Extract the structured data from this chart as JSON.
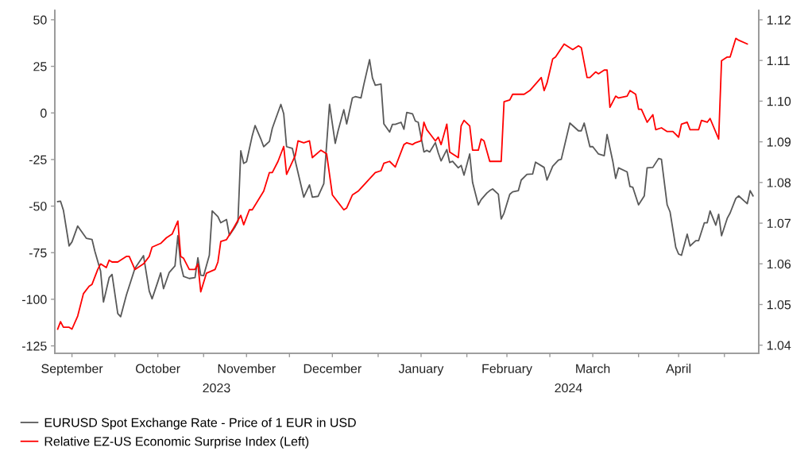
{
  "chart_data": {
    "type": "line",
    "xlim": [
      "2023-09-10",
      "2024-05-13"
    ],
    "xticks": [
      {
        "value": "2023-09-16",
        "label": "September"
      },
      {
        "value": "2023-10-01",
        "label": null
      },
      {
        "value": "2023-10-16",
        "label": "October"
      },
      {
        "value": "2023-11-01",
        "label": null
      },
      {
        "value": "2023-11-16",
        "label": "November"
      },
      {
        "value": "2023-12-01",
        "label": null
      },
      {
        "value": "2023-12-16",
        "label": "December"
      },
      {
        "value": "2024-01-01",
        "label": null
      },
      {
        "value": "2024-01-16",
        "label": "January"
      },
      {
        "value": "2024-02-01",
        "label": null
      },
      {
        "value": "2024-02-15",
        "label": "February"
      },
      {
        "value": "2024-03-01",
        "label": null
      },
      {
        "value": "2024-03-16",
        "label": "March"
      },
      {
        "value": "2024-04-01",
        "label": null
      },
      {
        "value": "2024-04-15",
        "label": "April"
      },
      {
        "value": "2024-05-01",
        "label": null
      }
    ],
    "ylim": [
      -129,
      55
    ],
    "yticks": [
      -125,
      -100,
      -75,
      -50,
      -25,
      0,
      25,
      50
    ],
    "y2lim": [
      1.038,
      1.1223
    ],
    "y2ticks": [
      1.04,
      1.05,
      1.06,
      1.07,
      1.08,
      1.09,
      {
        "value": 1.1,
        "label": "1.10"
      },
      1.11,
      1.12
    ],
    "grid": false,
    "legend": "bottom left",
    "line_style": "solid",
    "marker": "none",
    "annotations": [
      "2023",
      "2024"
    ],
    "series": [
      {
        "name": "EURUSD Spot Exchange Rate - Price of 1 EUR in USD",
        "color": "#595959",
        "axis": "y2",
        "x": [
          "2023-09-11",
          "2023-09-12",
          "2023-09-13",
          "2023-09-15",
          "2023-09-16",
          "2023-09-18",
          "2023-09-21",
          "2023-09-23",
          "2023-09-24",
          "2023-09-26",
          "2023-09-27",
          "2023-09-29",
          "2023-09-30",
          "2023-10-02",
          "2023-10-03",
          "2023-10-05",
          "2023-10-08",
          "2023-10-11",
          "2023-10-13",
          "2023-10-14",
          "2023-10-16",
          "2023-10-17",
          "2023-10-18",
          "2023-10-20",
          "2023-10-22",
          "2023-10-23",
          "2023-10-24",
          "2023-10-25",
          "2023-10-27",
          "2023-10-29",
          "2023-10-30",
          "2023-10-31",
          "2023-11-01",
          "2023-11-03",
          "2023-11-04",
          "2023-11-06",
          "2023-11-07",
          "2023-11-09",
          "2023-11-10",
          "2023-11-12",
          "2023-11-13",
          "2023-11-14",
          "2023-11-15",
          "2023-11-16",
          "2023-11-18",
          "2023-11-19",
          "2023-11-21",
          "2023-11-22",
          "2023-11-24",
          "2023-11-25",
          "2023-11-26",
          "2023-11-28",
          "2023-11-29",
          "2023-11-30",
          "2023-12-02",
          "2023-12-06",
          "2023-12-08",
          "2023-12-09",
          "2023-12-11",
          "2023-12-13",
          "2023-12-15",
          "2023-12-17",
          "2023-12-18",
          "2023-12-20",
          "2023-12-21",
          "2023-12-23",
          "2023-12-24",
          "2023-12-26",
          "2023-12-27",
          "2023-12-29",
          "2023-12-30",
          "2023-12-31",
          "2024-01-02",
          "2024-01-03",
          "2024-01-05",
          "2024-01-06",
          "2024-01-07",
          "2024-01-09",
          "2024-01-10",
          "2024-01-11",
          "2024-01-13",
          "2024-01-14",
          "2024-01-15",
          "2024-01-17",
          "2024-01-18",
          "2024-01-19",
          "2024-01-21",
          "2024-01-22",
          "2024-01-23",
          "2024-01-25",
          "2024-01-26",
          "2024-01-27",
          "2024-01-29",
          "2024-01-30",
          "2024-01-31",
          "2024-02-02",
          "2024-02-03",
          "2024-02-05",
          "2024-02-06",
          "2024-02-08",
          "2024-02-09",
          "2024-02-10",
          "2024-02-12",
          "2024-02-13",
          "2024-02-14",
          "2024-02-16",
          "2024-02-17",
          "2024-02-19",
          "2024-02-20",
          "2024-02-22",
          "2024-02-24",
          "2024-02-25",
          "2024-02-28",
          "2024-02-29",
          "2024-03-02",
          "2024-03-04",
          "2024-03-05",
          "2024-03-08",
          "2024-03-11",
          "2024-03-12",
          "2024-03-13",
          "2024-03-15",
          "2024-03-16",
          "2024-03-18",
          "2024-03-20",
          "2024-03-21",
          "2024-03-23",
          "2024-03-24",
          "2024-03-25",
          "2024-03-28",
          "2024-03-29",
          "2024-03-30",
          "2024-04-01",
          "2024-04-03",
          "2024-04-04",
          "2024-04-06",
          "2024-04-08",
          "2024-04-09",
          "2024-04-11",
          "2024-04-12",
          "2024-04-14",
          "2024-04-15",
          "2024-04-16",
          "2024-04-18",
          "2024-04-19",
          "2024-04-21",
          "2024-04-22",
          "2024-04-24",
          "2024-04-25",
          "2024-04-26",
          "2024-04-28",
          "2024-04-29",
          "2024-04-30",
          "2024-05-02",
          "2024-05-03",
          "2024-05-05",
          "2024-05-06",
          "2024-05-08",
          "2024-05-09",
          "2024-05-10",
          "2024-05-11"
        ],
        "values": [
          1.0753,
          1.0754,
          1.0732,
          1.0644,
          1.0654,
          1.0693,
          1.0663,
          1.066,
          1.0631,
          1.0582,
          1.0506,
          1.0566,
          1.0574,
          1.0478,
          1.047,
          1.0523,
          1.0589,
          1.062,
          1.0533,
          1.0514,
          1.0556,
          1.0578,
          1.0539,
          1.0579,
          1.0595,
          1.0669,
          1.0598,
          1.0569,
          1.0564,
          1.0566,
          1.0615,
          1.0572,
          1.0571,
          1.0621,
          1.073,
          1.0716,
          1.0701,
          1.0709,
          1.067,
          1.0691,
          1.0704,
          1.0878,
          1.0847,
          1.0851,
          1.0915,
          1.094,
          1.0907,
          1.0888,
          1.0901,
          1.0933,
          1.0953,
          1.0992,
          1.0969,
          1.0888,
          1.0884,
          1.0764,
          1.0794,
          1.0764,
          1.0766,
          1.0797,
          1.0992,
          1.0896,
          1.0927,
          1.0979,
          1.0944,
          1.1008,
          1.1011,
          1.1008,
          1.1041,
          1.1102,
          1.1057,
          1.1039,
          1.1042,
          1.0944,
          1.0924,
          1.0943,
          1.0943,
          1.0948,
          1.0931,
          1.0972,
          1.0969,
          1.0951,
          1.0948,
          1.0875,
          1.0879,
          1.0875,
          1.0898,
          1.0873,
          1.0853,
          1.0881,
          1.0849,
          1.0852,
          1.0836,
          1.0842,
          1.0818,
          1.087,
          1.08,
          1.0745,
          1.0758,
          1.0774,
          1.078,
          1.0784,
          1.0771,
          1.071,
          1.0725,
          1.0771,
          1.0777,
          1.078,
          1.0806,
          1.082,
          1.0821,
          1.085,
          1.0837,
          1.0806,
          1.084,
          1.0855,
          1.0857,
          1.0946,
          1.0927,
          1.0927,
          1.0946,
          1.0888,
          1.0888,
          1.087,
          1.0866,
          1.0918,
          1.0852,
          1.081,
          1.0836,
          1.0826,
          1.079,
          1.0788,
          1.0745,
          1.0767,
          1.0836,
          1.0837,
          1.0859,
          1.0857,
          1.0745,
          1.0728,
          1.0641,
          1.0624,
          1.0621,
          1.0673,
          1.0644,
          1.0657,
          1.0657,
          1.0701,
          1.0701,
          1.073,
          1.0695,
          1.0722,
          1.0669,
          1.0712,
          1.0725,
          1.0761,
          1.0767,
          1.0754,
          1.0748,
          1.078,
          1.0767
        ]
      },
      {
        "name": "Relative EZ-US Economic Surprise Index (Left)",
        "color": "#ff0000",
        "axis": "y",
        "x": [
          "2023-09-11",
          "2023-09-12",
          "2023-09-13",
          "2023-09-15",
          "2023-09-16",
          "2023-09-18",
          "2023-09-20",
          "2023-09-22",
          "2023-09-23",
          "2023-09-25",
          "2023-09-26",
          "2023-09-28",
          "2023-09-29",
          "2023-09-30",
          "2023-10-02",
          "2023-10-05",
          "2023-10-06",
          "2023-10-08",
          "2023-10-11",
          "2023-10-13",
          "2023-10-14",
          "2023-10-17",
          "2023-10-19",
          "2023-10-21",
          "2023-10-23",
          "2023-10-24",
          "2023-10-25",
          "2023-10-27",
          "2023-10-29",
          "2023-10-30",
          "2023-10-31",
          "2023-11-02",
          "2023-11-05",
          "2023-11-06",
          "2023-11-07",
          "2023-11-09",
          "2023-11-11",
          "2023-11-14",
          "2023-11-15",
          "2023-11-17",
          "2023-11-18",
          "2023-11-22",
          "2023-11-24",
          "2023-11-25",
          "2023-11-27",
          "2023-11-29",
          "2023-11-30",
          "2023-12-03",
          "2023-12-04",
          "2023-12-06",
          "2023-12-08",
          "2023-12-09",
          "2023-12-12",
          "2023-12-14",
          "2023-12-16",
          "2023-12-20",
          "2023-12-21",
          "2023-12-23",
          "2023-12-25",
          "2023-12-28",
          "2023-12-31",
          "2024-01-02",
          "2024-01-03",
          "2024-01-05",
          "2024-01-07",
          "2024-01-10",
          "2024-01-11",
          "2024-01-13",
          "2024-01-14",
          "2024-01-16",
          "2024-01-17",
          "2024-01-18",
          "2024-01-19",
          "2024-01-21",
          "2024-01-22",
          "2024-01-23",
          "2024-01-25",
          "2024-01-26",
          "2024-01-29",
          "2024-01-30",
          "2024-01-31",
          "2024-02-02",
          "2024-02-03",
          "2024-02-05",
          "2024-02-06",
          "2024-02-07",
          "2024-02-09",
          "2024-02-13",
          "2024-02-14",
          "2024-02-16",
          "2024-02-17",
          "2024-02-20",
          "2024-02-21",
          "2024-02-23",
          "2024-02-27",
          "2024-02-28",
          "2024-02-29",
          "2024-03-02",
          "2024-03-03",
          "2024-03-06",
          "2024-03-09",
          "2024-03-11",
          "2024-03-12",
          "2024-03-14",
          "2024-03-15",
          "2024-03-17",
          "2024-03-18",
          "2024-03-20",
          "2024-03-21",
          "2024-03-22",
          "2024-03-24",
          "2024-03-25",
          "2024-03-28",
          "2024-03-29",
          "2024-03-31",
          "2024-04-01",
          "2024-04-02",
          "2024-04-04",
          "2024-04-06",
          "2024-04-07",
          "2024-04-09",
          "2024-04-11",
          "2024-04-13",
          "2024-04-15",
          "2024-04-16",
          "2024-04-18",
          "2024-04-19",
          "2024-04-22",
          "2024-04-23",
          "2024-04-25",
          "2024-04-26",
          "2024-04-29",
          "2024-04-30",
          "2024-05-02",
          "2024-05-03",
          "2024-05-05",
          "2024-05-06",
          "2024-05-09"
        ],
        "values": [
          -116,
          -112,
          -115,
          -115,
          -116,
          -109,
          -97,
          -93,
          -92,
          -84,
          -81,
          -83,
          -79,
          -80,
          -80,
          -77,
          -77,
          -84,
          -81,
          -77,
          -72,
          -70,
          -67,
          -65,
          -58,
          -77,
          -78,
          -84,
          -84,
          -81,
          -96,
          -86,
          -84,
          -80,
          -69,
          -68,
          -63,
          -55,
          -60,
          -52,
          -52,
          -42,
          -32,
          -32,
          -26,
          -18,
          -33,
          -23,
          -15,
          -16,
          -15,
          -24,
          -20,
          -22,
          -44,
          -52,
          -51,
          -44,
          -42,
          -37,
          -32,
          -31,
          -27,
          -26,
          -29,
          -17,
          -16,
          -17,
          -16,
          -15,
          -5,
          -9,
          -11,
          -15,
          -13,
          -17,
          -6,
          -21,
          -24,
          -7,
          -4,
          -7,
          -20,
          -20,
          -14,
          -15,
          -26,
          -26,
          6,
          7,
          10,
          10,
          10,
          12,
          19,
          12,
          16,
          29,
          30,
          37,
          34,
          36,
          35,
          19,
          19,
          22,
          21,
          23,
          23,
          3,
          9,
          8,
          9,
          12,
          10,
          2,
          2,
          -5,
          -1,
          -9,
          -8,
          -10,
          -10,
          -13,
          -6,
          -5,
          -9,
          -9,
          -4,
          -5,
          -3,
          -14,
          28,
          30,
          30,
          40,
          39,
          37
        ]
      }
    ]
  }
}
